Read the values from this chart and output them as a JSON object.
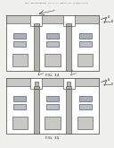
{
  "bg_color": "#f0f0ec",
  "header_text": "Patent Application Publication     Feb. 28, 2013   Sheet 14 of 124     US 2013/0049714 A1",
  "fig34_label": "FIG. 34",
  "fig35_label": "FIG. 35",
  "line_color": "#404040",
  "fill_outer": "#e8e8e4",
  "fill_white": "#ffffff",
  "fill_mid": "#c8c8c4",
  "fill_cell_top": "#a8b0c0",
  "fill_cell_mid": "#b8c0cc",
  "fill_cell_bot": "#c8c8c4",
  "fill_divider": "#b0b0ac"
}
